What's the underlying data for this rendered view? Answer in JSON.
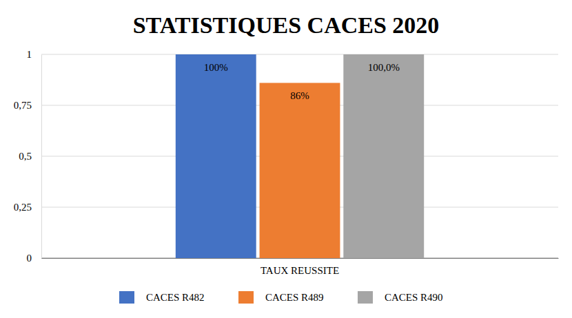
{
  "chart_data": {
    "type": "bar",
    "title": "STATISTIQUES CACES 2020",
    "categories": [
      "TAUX REUSSITE"
    ],
    "series": [
      {
        "name": "CACES R482",
        "color": "#4472c4",
        "values": [
          1.0
        ],
        "value_labels": [
          "100%"
        ]
      },
      {
        "name": "CACES R489",
        "color": "#ed7d31",
        "values": [
          0.86
        ],
        "value_labels": [
          "86%"
        ]
      },
      {
        "name": "CACES R490",
        "color": "#a5a5a5",
        "values": [
          1.0
        ],
        "value_labels": [
          "100,0%"
        ]
      }
    ],
    "ylim": [
      0,
      1
    ],
    "yticks": [
      0,
      {
        "value": 0.25,
        "label": "0,25"
      },
      {
        "value": 0.5,
        "label": "0,5"
      },
      {
        "value": 0.75,
        "label": "0,75"
      },
      1
    ],
    "grid": true,
    "legend": "bottom",
    "data_labels": true
  }
}
